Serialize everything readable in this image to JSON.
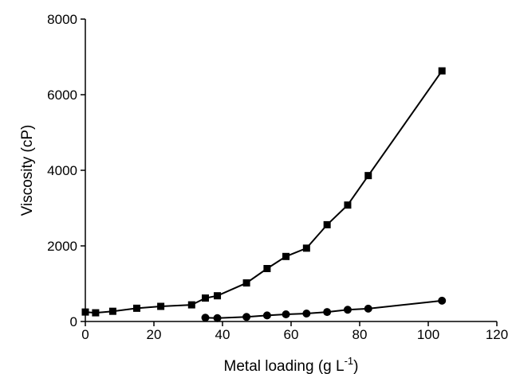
{
  "chart_data": {
    "type": "line",
    "title": "",
    "xlabel": "Metal loading (g L",
    "xlabel_superscript": "-1",
    "xlabel_suffix": ")",
    "ylabel": "Viscosity (cP)",
    "xlim": [
      0,
      120
    ],
    "ylim": [
      0,
      8000
    ],
    "xticks": [
      0,
      20,
      40,
      60,
      80,
      100,
      120
    ],
    "yticks": [
      0,
      2000,
      4000,
      6000,
      8000
    ],
    "grid": false,
    "legend": "none",
    "series": [
      {
        "marker": "square",
        "color": "#000000",
        "x": [
          0,
          3,
          8,
          15,
          22,
          31,
          35,
          38.5,
          47,
          53,
          58.5,
          64.5,
          70.5,
          76.5,
          82.5,
          104
        ],
        "y": [
          250,
          230,
          270,
          350,
          400,
          440,
          620,
          680,
          1020,
          1400,
          1720,
          1940,
          2560,
          3080,
          3860,
          6630
        ]
      },
      {
        "marker": "circle",
        "color": "#000000",
        "x": [
          35,
          38.5,
          47,
          53,
          58.5,
          64.5,
          70.5,
          76.5,
          82.5,
          104
        ],
        "y": [
          100,
          90,
          120,
          160,
          190,
          210,
          250,
          310,
          340,
          550
        ]
      }
    ]
  }
}
